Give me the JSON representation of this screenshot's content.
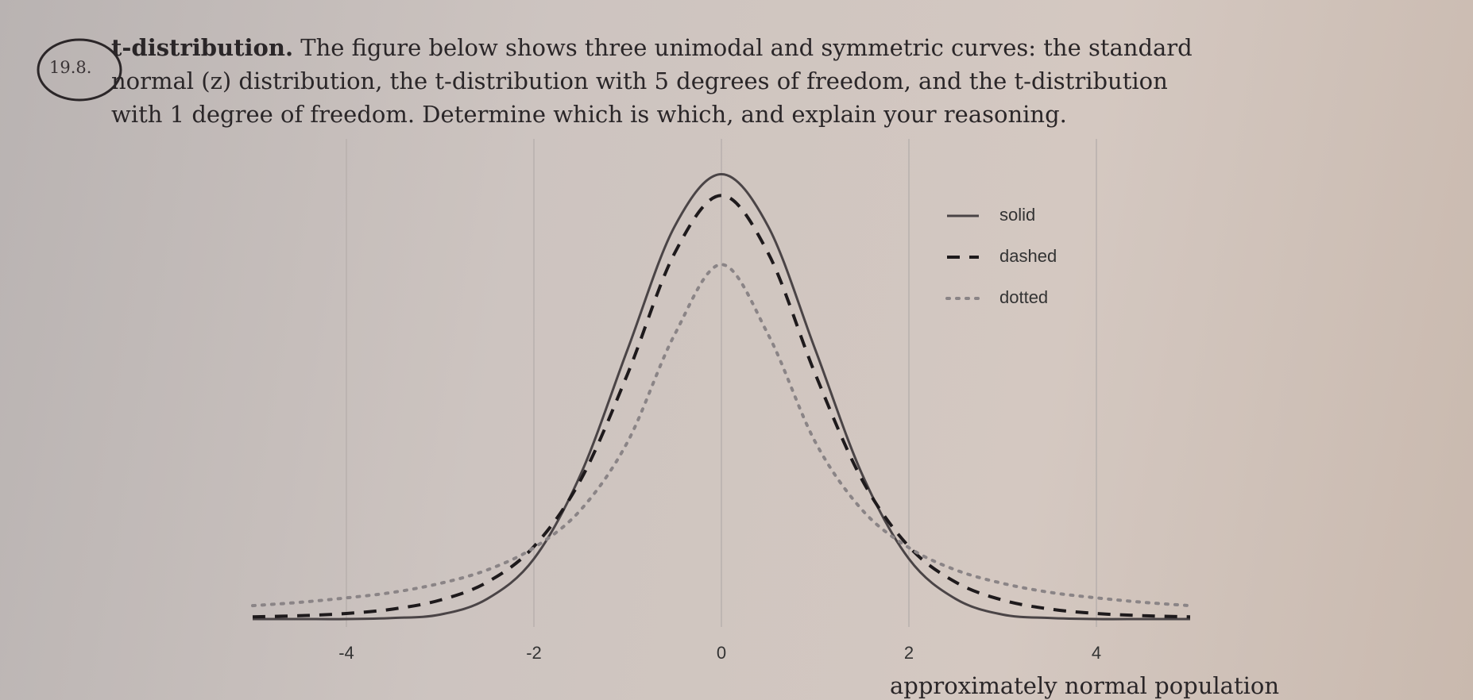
{
  "problem": {
    "number": "19.8.",
    "heading": "t-distribution.",
    "lines": [
      "The figure below shows three unimodal and symmetric curves: the standard",
      "normal (z) distribution, the t-distribution with 5 degrees of freedom, and the t-distribution",
      "with 1 degree of freedom. Determine which is which, and explain your reasoning."
    ],
    "footer": "approximately normal population"
  },
  "chart_data": {
    "type": "line",
    "x": [
      -5,
      -4.5,
      -4,
      -3.5,
      -3,
      -2.5,
      -2,
      -1.5,
      -1,
      -0.5,
      0,
      0.5,
      1,
      1.5,
      2,
      2.5,
      3,
      3.5,
      4,
      4.5,
      5
    ],
    "series": [
      {
        "name": "solid",
        "color": "#4a4446",
        "dash": "solid",
        "values": [
          0,
          0,
          0,
          0.001,
          0.004,
          0.018,
          0.054,
          0.13,
          0.242,
          0.352,
          0.399,
          0.352,
          0.242,
          0.13,
          0.054,
          0.018,
          0.004,
          0.001,
          0,
          0,
          0
        ]
      },
      {
        "name": "dashed",
        "color": "#1e1a1c",
        "dash": "dashed",
        "values": [
          0.002,
          0.003,
          0.005,
          0.009,
          0.017,
          0.033,
          0.065,
          0.125,
          0.22,
          0.328,
          0.38,
          0.328,
          0.22,
          0.125,
          0.065,
          0.033,
          0.017,
          0.009,
          0.005,
          0.003,
          0.002
        ]
      },
      {
        "name": "dotted",
        "color": "#8a8486",
        "dash": "dotted",
        "values": [
          0.012,
          0.015,
          0.019,
          0.024,
          0.032,
          0.044,
          0.064,
          0.098,
          0.159,
          0.255,
          0.318,
          0.255,
          0.159,
          0.098,
          0.064,
          0.044,
          0.032,
          0.024,
          0.019,
          0.015,
          0.012
        ]
      }
    ],
    "xlim": [
      -5,
      5
    ],
    "ylim": [
      0,
      0.42
    ],
    "xticks": [
      -4,
      -2,
      0,
      2,
      4
    ],
    "grid": true,
    "legend": "upper right"
  }
}
